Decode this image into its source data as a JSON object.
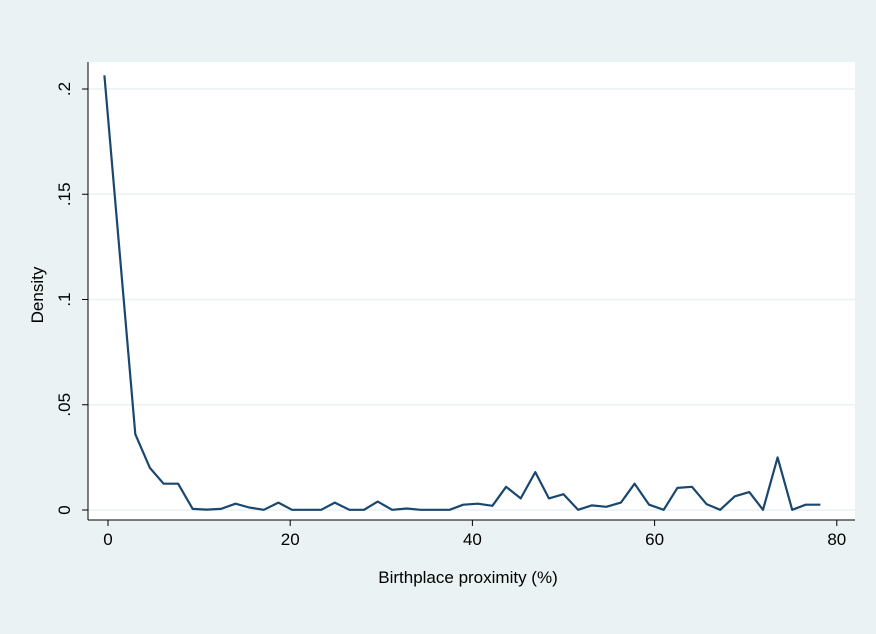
{
  "chart_data": {
    "type": "line",
    "title": "",
    "xlabel": "Birthplace proximity (%)",
    "ylabel": "Density",
    "xlim": [
      -1.5,
      80
    ],
    "ylim": [
      0,
      0.2
    ],
    "xticks": [
      0,
      20,
      40,
      60,
      80
    ],
    "xtick_labels": [
      "0",
      "20",
      "40",
      "60",
      "80"
    ],
    "yticks": [
      0,
      0.05,
      0.1,
      0.15,
      0.2
    ],
    "ytick_labels": [
      "0",
      ".05",
      ".1",
      ".15",
      ".2"
    ],
    "grid": true,
    "colors": {
      "background": "#eaf2f3",
      "plot_area": "#ffffff",
      "line": "#1a476f",
      "grid": "#eaf2f3"
    },
    "series": [
      {
        "x": [
          -0.4,
          3.0,
          4.6,
          6.1,
          7.7,
          9.3,
          10.8,
          12.4,
          14.0,
          15.5,
          17.1,
          18.7,
          20.2,
          21.8,
          23.4,
          24.9,
          26.5,
          28.1,
          29.6,
          31.2,
          32.8,
          34.3,
          35.9,
          37.5,
          39.0,
          40.6,
          42.2,
          43.7,
          45.3,
          46.9,
          48.4,
          50.0,
          51.6,
          53.1,
          54.7,
          56.3,
          57.8,
          59.4,
          61.0,
          62.5,
          64.1,
          65.7,
          67.2,
          68.8,
          70.4,
          71.9,
          73.5,
          75.1,
          76.6,
          78.2
        ],
        "y": [
          0.2065,
          0.036,
          0.02,
          0.0125,
          0.0125,
          0.0005,
          0.0002,
          0.0005,
          0.003,
          0.0012,
          0.0001,
          0.0035,
          0.0001,
          0.0001,
          0.0001,
          0.0035,
          0.0001,
          0.0001,
          0.004,
          0.0001,
          0.0007,
          0.0001,
          0.0001,
          0.0001,
          0.0025,
          0.003,
          0.002,
          0.011,
          0.0055,
          0.018,
          0.0055,
          0.0075,
          0.0001,
          0.0022,
          0.0015,
          0.0035,
          0.0125,
          0.0025,
          0.0001,
          0.0105,
          0.011,
          0.0028,
          0.0001,
          0.0065,
          0.0085,
          0.0001,
          0.025,
          0.0001,
          0.0025,
          0.0025
        ]
      }
    ]
  }
}
